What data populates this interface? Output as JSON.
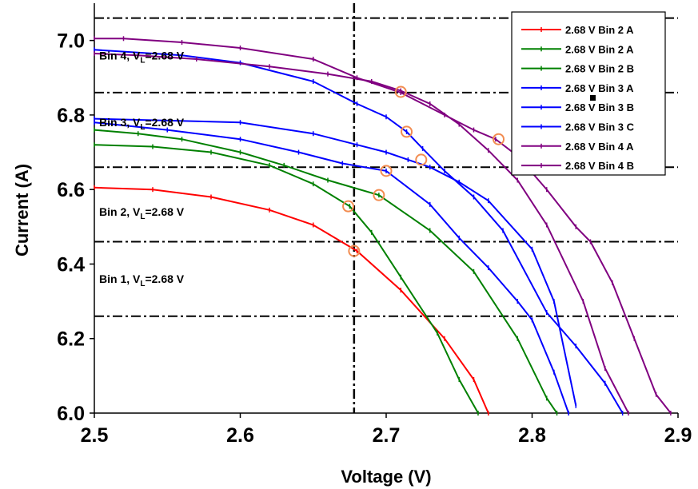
{
  "chart_data": {
    "type": "line",
    "xlabel": "Voltage (V)",
    "ylabel": "Current (A)",
    "xlim": [
      2.5,
      2.9
    ],
    "ylim": [
      6.0,
      7.1
    ],
    "xticks": [
      2.5,
      2.6,
      2.7,
      2.8,
      2.9
    ],
    "xtick_labels": [
      "2.5",
      "2.6",
      "2.7",
      "2.8",
      "2.9"
    ],
    "yticks": [
      6.0,
      6.2,
      6.4,
      6.6,
      6.8,
      7.0
    ],
    "ytick_labels": [
      "6.0",
      "6.2",
      "6.4",
      "6.6",
      "6.8",
      "7.0"
    ],
    "grid": false,
    "legend_position": "top-right",
    "reference_lines": {
      "vertical_x": 2.678,
      "horizontal_y": [
        6.26,
        6.46,
        6.66,
        6.86,
        7.06
      ]
    },
    "bin_labels": [
      {
        "main": "Bin 4, V",
        "sub": "L",
        "rest": "=2.68 V",
        "y": 6.96
      },
      {
        "main": "Bin 3, V",
        "sub": "L",
        "rest": "=2.68 V",
        "y": 6.78
      },
      {
        "main": "Bin 2, V",
        "sub": "L",
        "rest": "=2.68 V",
        "y": 6.54
      },
      {
        "main": "Bin 1, V",
        "sub": "L",
        "rest": "=2.68 V",
        "y": 6.36
      }
    ],
    "series": [
      {
        "name": "2.68 V Bin 2 A",
        "color": "#ff0000",
        "x": [
          2.5,
          2.54,
          2.58,
          2.62,
          2.65,
          2.68,
          2.71,
          2.74,
          2.76,
          2.77
        ],
        "y": [
          6.605,
          6.6,
          6.58,
          6.545,
          6.505,
          6.435,
          6.33,
          6.2,
          6.09,
          6.0
        ]
      },
      {
        "name": "2.68 V Bin 2 A",
        "color": "#008000",
        "x": [
          2.5,
          2.54,
          2.58,
          2.62,
          2.65,
          2.675,
          2.69,
          2.71,
          2.735,
          2.75,
          2.763
        ],
        "y": [
          6.72,
          6.715,
          6.7,
          6.665,
          6.615,
          6.555,
          6.485,
          6.365,
          6.215,
          6.09,
          6.0
        ]
      },
      {
        "name": "2.68 V Bin 2 B",
        "color": "#008000",
        "x": [
          2.5,
          2.53,
          2.56,
          2.6,
          2.63,
          2.66,
          2.695,
          2.73,
          2.76,
          2.79,
          2.81,
          2.817
        ],
        "y": [
          6.76,
          6.75,
          6.735,
          6.7,
          6.665,
          6.625,
          6.585,
          6.49,
          6.38,
          6.2,
          6.04,
          6.0
        ]
      },
      {
        "name": "2.68 V Bin 3 A",
        "color": "#0000ff",
        "x": [
          2.5,
          2.6,
          2.65,
          2.68,
          2.7,
          2.715,
          2.73,
          2.75,
          2.77,
          2.8,
          2.815,
          2.83
        ],
        "y": [
          6.79,
          6.78,
          6.75,
          6.72,
          6.7,
          6.68,
          6.66,
          6.62,
          6.57,
          6.44,
          6.3,
          6.02
        ]
      },
      {
        "name": "2.68 V Bin 3 B",
        "color": "#0000ff",
        "x": [
          2.5,
          2.55,
          2.6,
          2.64,
          2.67,
          2.7,
          2.73,
          2.75,
          2.77,
          2.79,
          2.8,
          2.815,
          2.825
        ],
        "y": [
          6.78,
          6.76,
          6.735,
          6.7,
          6.67,
          6.65,
          6.56,
          6.47,
          6.39,
          6.3,
          6.25,
          6.11,
          6.0
        ]
      },
      {
        "name": "2.68 V Bin 3 C",
        "color": "#0000ff",
        "x": [
          2.5,
          2.56,
          2.6,
          2.65,
          2.68,
          2.7,
          2.714,
          2.725,
          2.74,
          2.76,
          2.78,
          2.81,
          2.83,
          2.85,
          2.862
        ],
        "y": [
          6.975,
          6.96,
          6.94,
          6.89,
          6.83,
          6.795,
          6.755,
          6.71,
          6.65,
          6.58,
          6.49,
          6.27,
          6.18,
          6.08,
          6.0
        ]
      },
      {
        "name": "2.68 V Bin 4 A",
        "color": "#800080",
        "x": [
          2.5,
          2.53,
          2.57,
          2.62,
          2.66,
          2.69,
          2.71,
          2.73,
          2.75,
          2.77,
          2.79,
          2.81,
          2.835,
          2.85,
          2.866
        ],
        "y": [
          6.965,
          6.96,
          6.95,
          6.93,
          6.91,
          6.89,
          6.865,
          6.83,
          6.775,
          6.705,
          6.625,
          6.505,
          6.3,
          6.12,
          6.0
        ]
      },
      {
        "name": "2.68 V Bin 4 B",
        "color": "#800080",
        "x": [
          2.5,
          2.52,
          2.56,
          2.6,
          2.65,
          2.68,
          2.71,
          2.74,
          2.76,
          2.775,
          2.79,
          2.81,
          2.83,
          2.84,
          2.855,
          2.87,
          2.885,
          2.895
        ],
        "y": [
          7.005,
          7.005,
          6.995,
          6.98,
          6.95,
          6.9,
          6.86,
          6.8,
          6.76,
          6.735,
          6.69,
          6.6,
          6.5,
          6.46,
          6.35,
          6.2,
          6.05,
          6.0
        ]
      }
    ],
    "highlighted_points": [
      {
        "x": 2.678,
        "y": 6.435
      },
      {
        "x": 2.674,
        "y": 6.555
      },
      {
        "x": 2.695,
        "y": 6.585
      },
      {
        "x": 2.7,
        "y": 6.65
      },
      {
        "x": 2.724,
        "y": 6.68
      },
      {
        "x": 2.714,
        "y": 6.755
      },
      {
        "x": 2.71,
        "y": 6.862
      },
      {
        "x": 2.777,
        "y": 6.735
      }
    ]
  }
}
